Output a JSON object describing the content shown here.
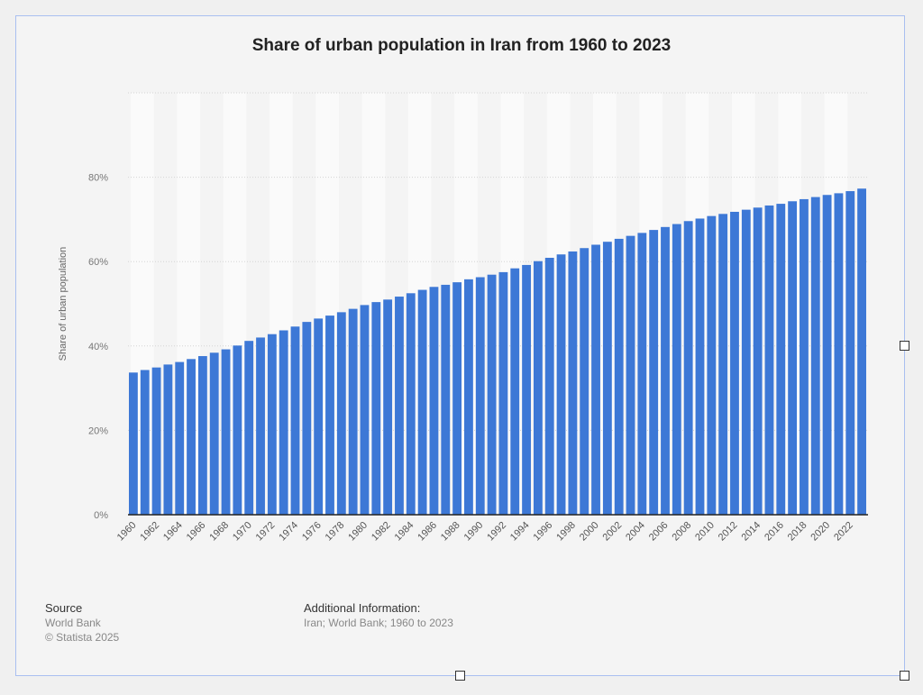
{
  "chart_data": {
    "type": "bar",
    "title": "Share of urban population in Iran from 1960 to 2023",
    "ylabel": "Share of urban population",
    "ylim": [
      0,
      100
    ],
    "yticks": [
      "0%",
      "20%",
      "40%",
      "60%",
      "80%"
    ],
    "grid": true,
    "color": "#3d78d6",
    "categories": [
      1960,
      1961,
      1962,
      1963,
      1964,
      1965,
      1966,
      1967,
      1968,
      1969,
      1970,
      1971,
      1972,
      1973,
      1974,
      1975,
      1976,
      1977,
      1978,
      1979,
      1980,
      1981,
      1982,
      1983,
      1984,
      1985,
      1986,
      1987,
      1988,
      1989,
      1990,
      1991,
      1992,
      1993,
      1994,
      1995,
      1996,
      1997,
      1998,
      1999,
      2000,
      2001,
      2002,
      2003,
      2004,
      2005,
      2006,
      2007,
      2008,
      2009,
      2010,
      2011,
      2012,
      2013,
      2014,
      2015,
      2016,
      2017,
      2018,
      2019,
      2020,
      2021,
      2022,
      2023
    ],
    "values": [
      33.7,
      34.3,
      34.9,
      35.6,
      36.2,
      36.9,
      37.6,
      38.4,
      39.2,
      40.1,
      41.2,
      42.0,
      42.8,
      43.7,
      44.6,
      45.7,
      46.5,
      47.2,
      48.0,
      48.8,
      49.7,
      50.4,
      51.0,
      51.7,
      52.5,
      53.3,
      54.0,
      54.5,
      55.1,
      55.8,
      56.3,
      56.9,
      57.5,
      58.4,
      59.2,
      60.1,
      60.9,
      61.7,
      62.4,
      63.2,
      64.0,
      64.7,
      65.4,
      66.1,
      66.8,
      67.5,
      68.2,
      68.9,
      69.6,
      70.2,
      70.8,
      71.3,
      71.8,
      72.3,
      72.8,
      73.3,
      73.7,
      74.3,
      74.8,
      75.3,
      75.8,
      76.2,
      76.7,
      77.3
    ]
  },
  "footer": {
    "source_label": "Source",
    "source": "World Bank",
    "copyright": "© Statista 2025",
    "additional_label": "Additional Information:",
    "additional": "Iran; World Bank; 1960 to 2023"
  }
}
